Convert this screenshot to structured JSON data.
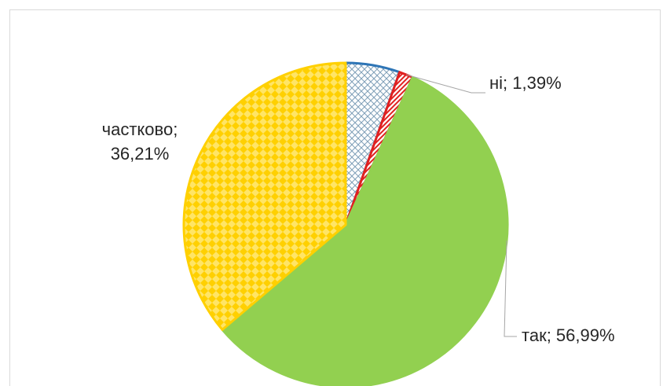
{
  "chart_data": {
    "type": "pie",
    "slices": [
      {
        "label": "",
        "value": 5.41,
        "text": "",
        "color": "#2e75b6",
        "pattern": "crosshatch"
      },
      {
        "label": "ні",
        "value": 1.39,
        "text": "ні; 1,39%",
        "color": "#e02020",
        "pattern": "diagonal-stripes"
      },
      {
        "label": "так",
        "value": 56.99,
        "text": "так; 56,99%",
        "color": "#92d050",
        "pattern": "solid"
      },
      {
        "label": "частково",
        "value": 36.21,
        "text_line1": "частково;",
        "text_line2": "36,21%",
        "color": "#ffd000",
        "pattern": "checkerboard"
      }
    ],
    "start_angle": "12 o'clock",
    "direction": "clockwise",
    "legend": "none",
    "title": ""
  }
}
